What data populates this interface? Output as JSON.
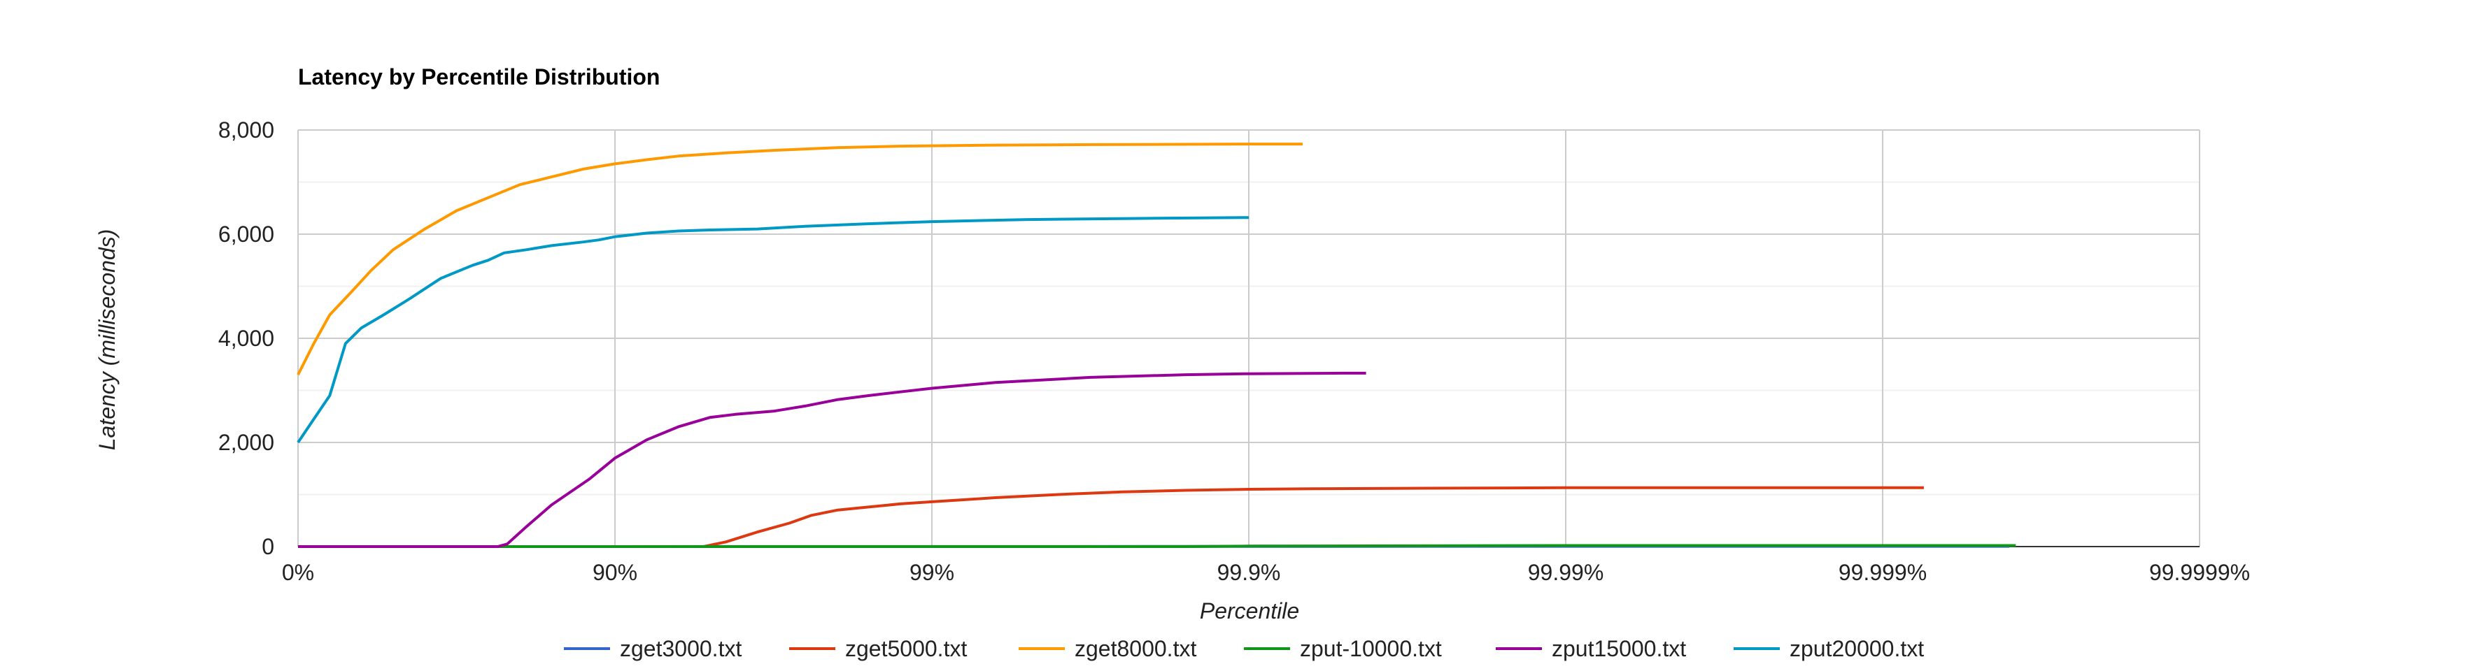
{
  "chart_data": {
    "type": "line",
    "title": "Latency by Percentile Distribution",
    "xlabel": "Percentile",
    "ylabel": "Latency (milliseconds)",
    "x_scale": "log-percentile (inverse of 1 - percentile)",
    "x_ticks": [
      "0%",
      "90%",
      "99%",
      "99.9%",
      "99.99%",
      "99.999%",
      "99.9999%"
    ],
    "x_tick_values": [
      0,
      1,
      2,
      3,
      4,
      5,
      6
    ],
    "xlim": [
      0,
      6
    ],
    "y_ticks": [
      "0",
      "2,000",
      "4,000",
      "6,000",
      "8,000"
    ],
    "y_tick_values": [
      0,
      2000,
      4000,
      6000,
      8000
    ],
    "ylim": [
      0,
      8000
    ],
    "minor_y_gridlines": true,
    "grid": true,
    "legend_position": "bottom",
    "series": [
      {
        "name": "zget3000.txt",
        "color": "#3366cc",
        "points": [
          [
            0,
            0
          ],
          [
            2,
            2
          ],
          [
            4,
            5
          ],
          [
            5.4,
            5
          ]
        ]
      },
      {
        "name": "zget5000.txt",
        "color": "#dc3912",
        "points": [
          [
            0,
            0
          ],
          [
            1.0,
            0
          ],
          [
            1.28,
            0
          ],
          [
            1.35,
            90
          ],
          [
            1.45,
            280
          ],
          [
            1.55,
            450
          ],
          [
            1.62,
            600
          ],
          [
            1.7,
            700
          ],
          [
            1.8,
            760
          ],
          [
            1.9,
            820
          ],
          [
            2.0,
            860
          ],
          [
            2.1,
            900
          ],
          [
            2.2,
            940
          ],
          [
            2.4,
            1000
          ],
          [
            2.6,
            1050
          ],
          [
            2.8,
            1080
          ],
          [
            3.0,
            1100
          ],
          [
            3.2,
            1110
          ],
          [
            3.5,
            1120
          ],
          [
            4.0,
            1130
          ],
          [
            4.5,
            1130
          ],
          [
            5.13,
            1130
          ]
        ]
      },
      {
        "name": "zget8000.txt",
        "color": "#ff9900",
        "points": [
          [
            0,
            3300
          ],
          [
            0.05,
            3900
          ],
          [
            0.1,
            4450
          ],
          [
            0.17,
            4900
          ],
          [
            0.23,
            5300
          ],
          [
            0.3,
            5700
          ],
          [
            0.4,
            6100
          ],
          [
            0.5,
            6450
          ],
          [
            0.6,
            6700
          ],
          [
            0.7,
            6950
          ],
          [
            0.8,
            7100
          ],
          [
            0.9,
            7250
          ],
          [
            1.0,
            7350
          ],
          [
            1.1,
            7430
          ],
          [
            1.2,
            7500
          ],
          [
            1.35,
            7560
          ],
          [
            1.5,
            7610
          ],
          [
            1.7,
            7660
          ],
          [
            1.9,
            7690
          ],
          [
            2.2,
            7710
          ],
          [
            2.5,
            7720
          ],
          [
            3.0,
            7730
          ],
          [
            3.17,
            7730
          ]
        ]
      },
      {
        "name": "zput-10000.txt",
        "color": "#109618",
        "points": [
          [
            0,
            0
          ],
          [
            2.0,
            0
          ],
          [
            2.8,
            0
          ],
          [
            3.0,
            10
          ],
          [
            4.0,
            20
          ],
          [
            5.0,
            20
          ],
          [
            5.42,
            20
          ]
        ]
      },
      {
        "name": "zput15000.txt",
        "color": "#990099",
        "points": [
          [
            0,
            0
          ],
          [
            0.63,
            0
          ],
          [
            0.66,
            50
          ],
          [
            0.72,
            380
          ],
          [
            0.8,
            800
          ],
          [
            0.92,
            1300
          ],
          [
            1.0,
            1700
          ],
          [
            1.1,
            2050
          ],
          [
            1.2,
            2300
          ],
          [
            1.3,
            2480
          ],
          [
            1.38,
            2540
          ],
          [
            1.5,
            2600
          ],
          [
            1.6,
            2700
          ],
          [
            1.7,
            2820
          ],
          [
            1.8,
            2900
          ],
          [
            1.9,
            2970
          ],
          [
            2.0,
            3040
          ],
          [
            2.2,
            3150
          ],
          [
            2.5,
            3250
          ],
          [
            2.8,
            3300
          ],
          [
            3.0,
            3320
          ],
          [
            3.3,
            3330
          ],
          [
            3.37,
            3330
          ]
        ]
      },
      {
        "name": "zput20000.txt",
        "color": "#0099c6",
        "points": [
          [
            0,
            2000
          ],
          [
            0.05,
            2450
          ],
          [
            0.1,
            2900
          ],
          [
            0.15,
            3900
          ],
          [
            0.2,
            4200
          ],
          [
            0.27,
            4450
          ],
          [
            0.35,
            4750
          ],
          [
            0.45,
            5150
          ],
          [
            0.55,
            5400
          ],
          [
            0.6,
            5500
          ],
          [
            0.65,
            5640
          ],
          [
            0.72,
            5700
          ],
          [
            0.8,
            5780
          ],
          [
            0.9,
            5850
          ],
          [
            0.95,
            5890
          ],
          [
            1.0,
            5950
          ],
          [
            1.1,
            6020
          ],
          [
            1.2,
            6060
          ],
          [
            1.3,
            6080
          ],
          [
            1.45,
            6100
          ],
          [
            1.6,
            6150
          ],
          [
            1.8,
            6200
          ],
          [
            2.0,
            6240
          ],
          [
            2.3,
            6280
          ],
          [
            2.6,
            6300
          ],
          [
            3.0,
            6320
          ]
        ]
      }
    ]
  }
}
